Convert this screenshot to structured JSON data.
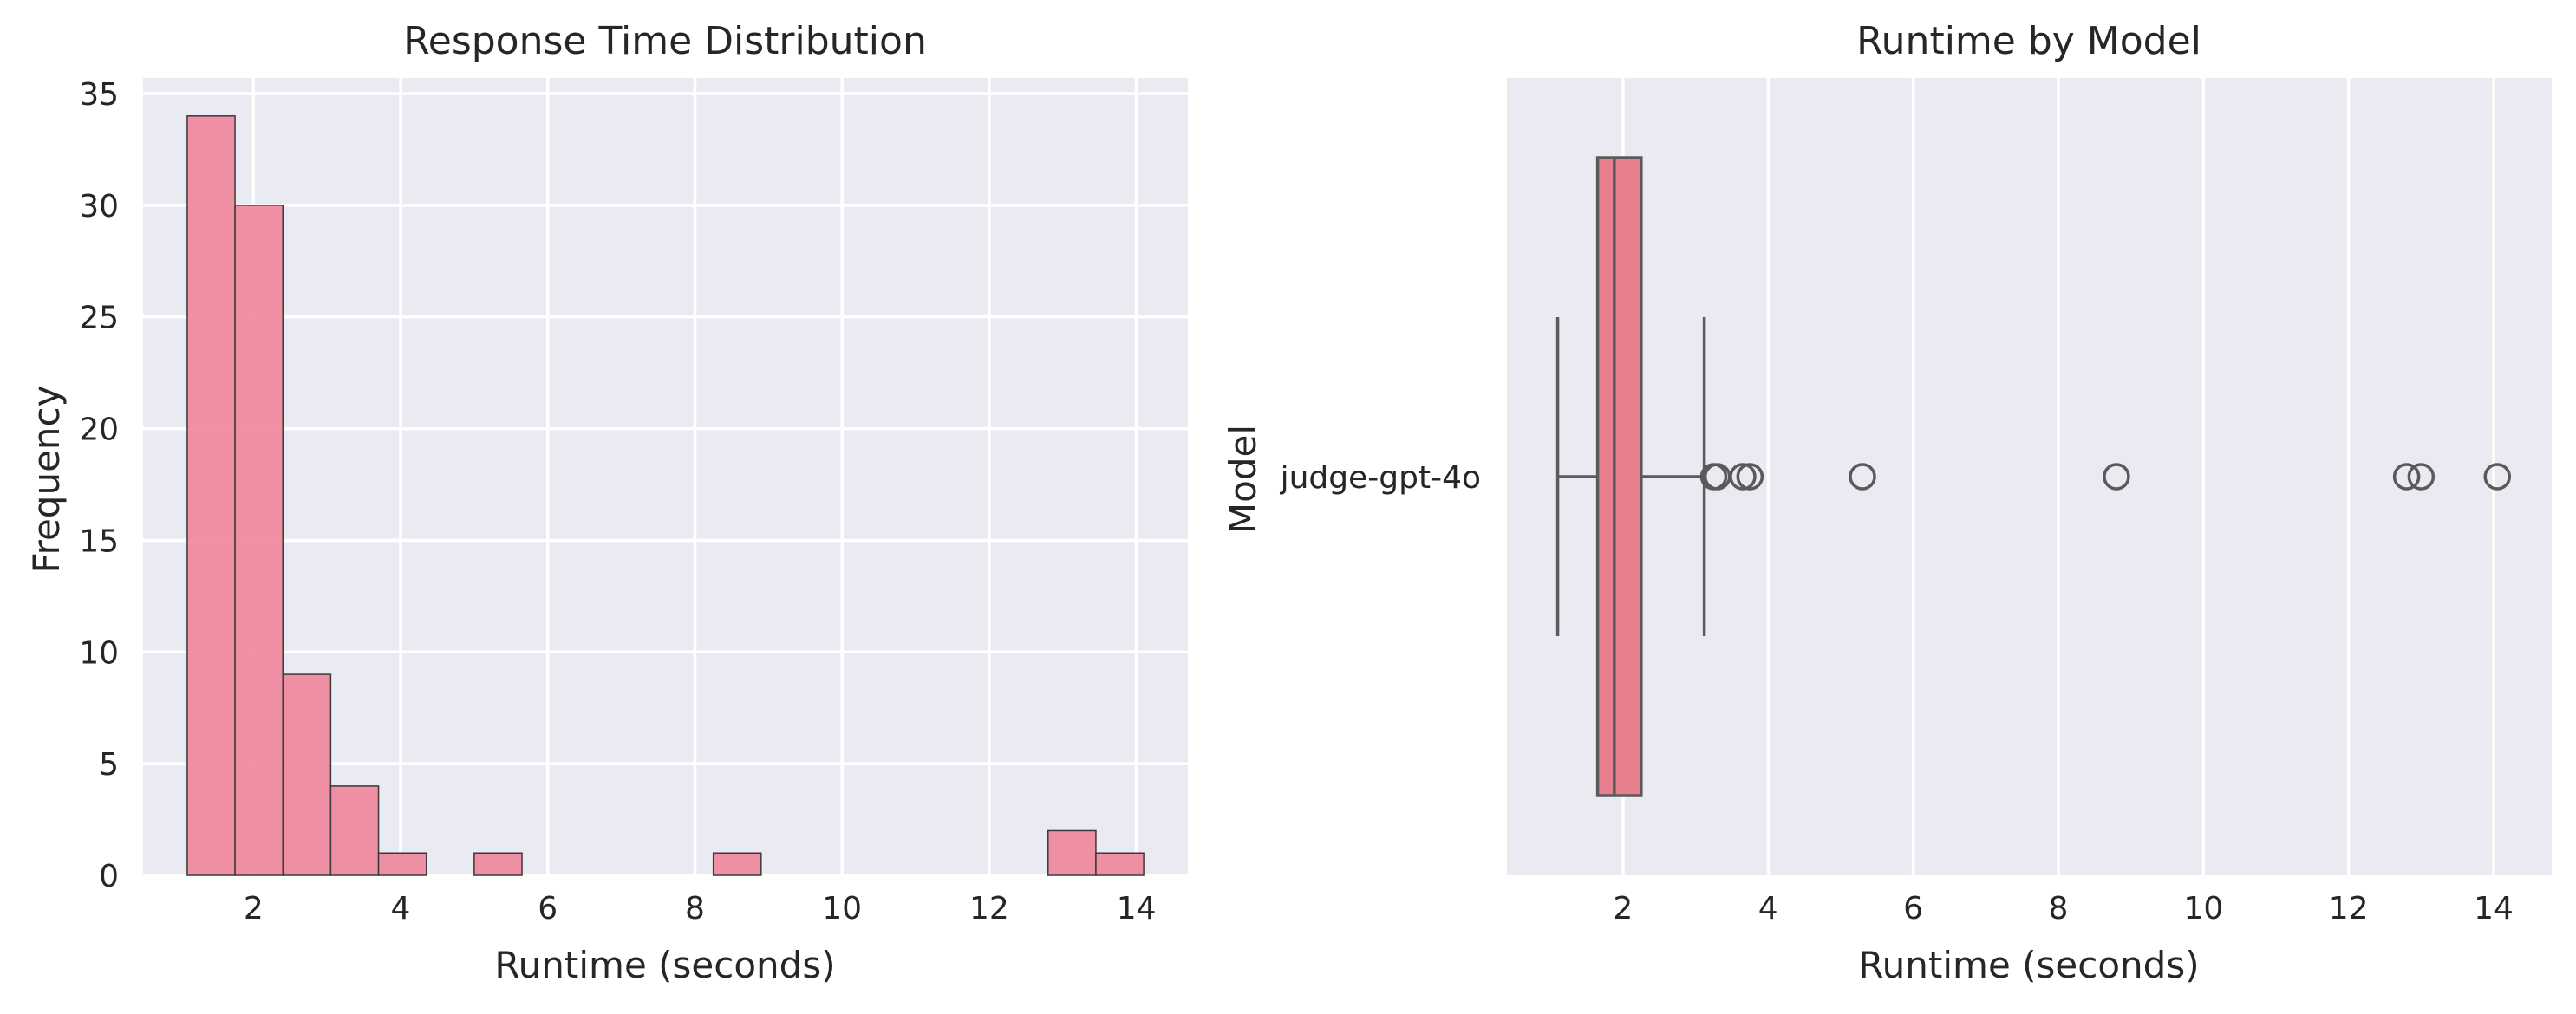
{
  "chart_data": [
    {
      "type": "bar",
      "title": "Response Time Distribution",
      "xlabel": "Runtime (seconds)",
      "ylabel": "Frequency",
      "xlim": [
        0.5,
        14.7
      ],
      "ylim": [
        0,
        35.7
      ],
      "xticks": [
        2,
        4,
        6,
        8,
        10,
        12,
        14
      ],
      "yticks": [
        0,
        5,
        10,
        15,
        20,
        25,
        30,
        35
      ],
      "grid": true,
      "bin_edges": [
        1.1,
        1.75,
        2.4,
        3.05,
        3.7,
        4.35,
        5.0,
        5.65,
        6.3,
        6.95,
        7.6,
        8.25,
        8.9,
        9.55,
        10.2,
        10.85,
        11.5,
        12.15,
        12.8,
        13.45,
        14.1
      ],
      "values": [
        34,
        30,
        9,
        4,
        1,
        0,
        1,
        0,
        0,
        0,
        0,
        1,
        0,
        0,
        0,
        0,
        0,
        0,
        2,
        1
      ],
      "bar_color": "#f0859a"
    },
    {
      "type": "box",
      "title": "Runtime by Model",
      "xlabel": "Runtime (seconds)",
      "ylabel": "Model",
      "xlim": [
        0.4,
        14.8
      ],
      "xticks": [
        2,
        4,
        6,
        8,
        10,
        12,
        14
      ],
      "grid": true,
      "categories": [
        "judge-gpt-4o"
      ],
      "boxes": [
        {
          "category": "judge-gpt-4o",
          "whisker_low": 1.1,
          "q1": 1.65,
          "median": 1.88,
          "q3": 2.25,
          "whisker_high": 3.12,
          "outliers": [
            3.25,
            3.3,
            3.65,
            3.75,
            5.3,
            8.8,
            12.8,
            13.0,
            14.05
          ]
        }
      ],
      "box_color": "#e6808f"
    }
  ]
}
